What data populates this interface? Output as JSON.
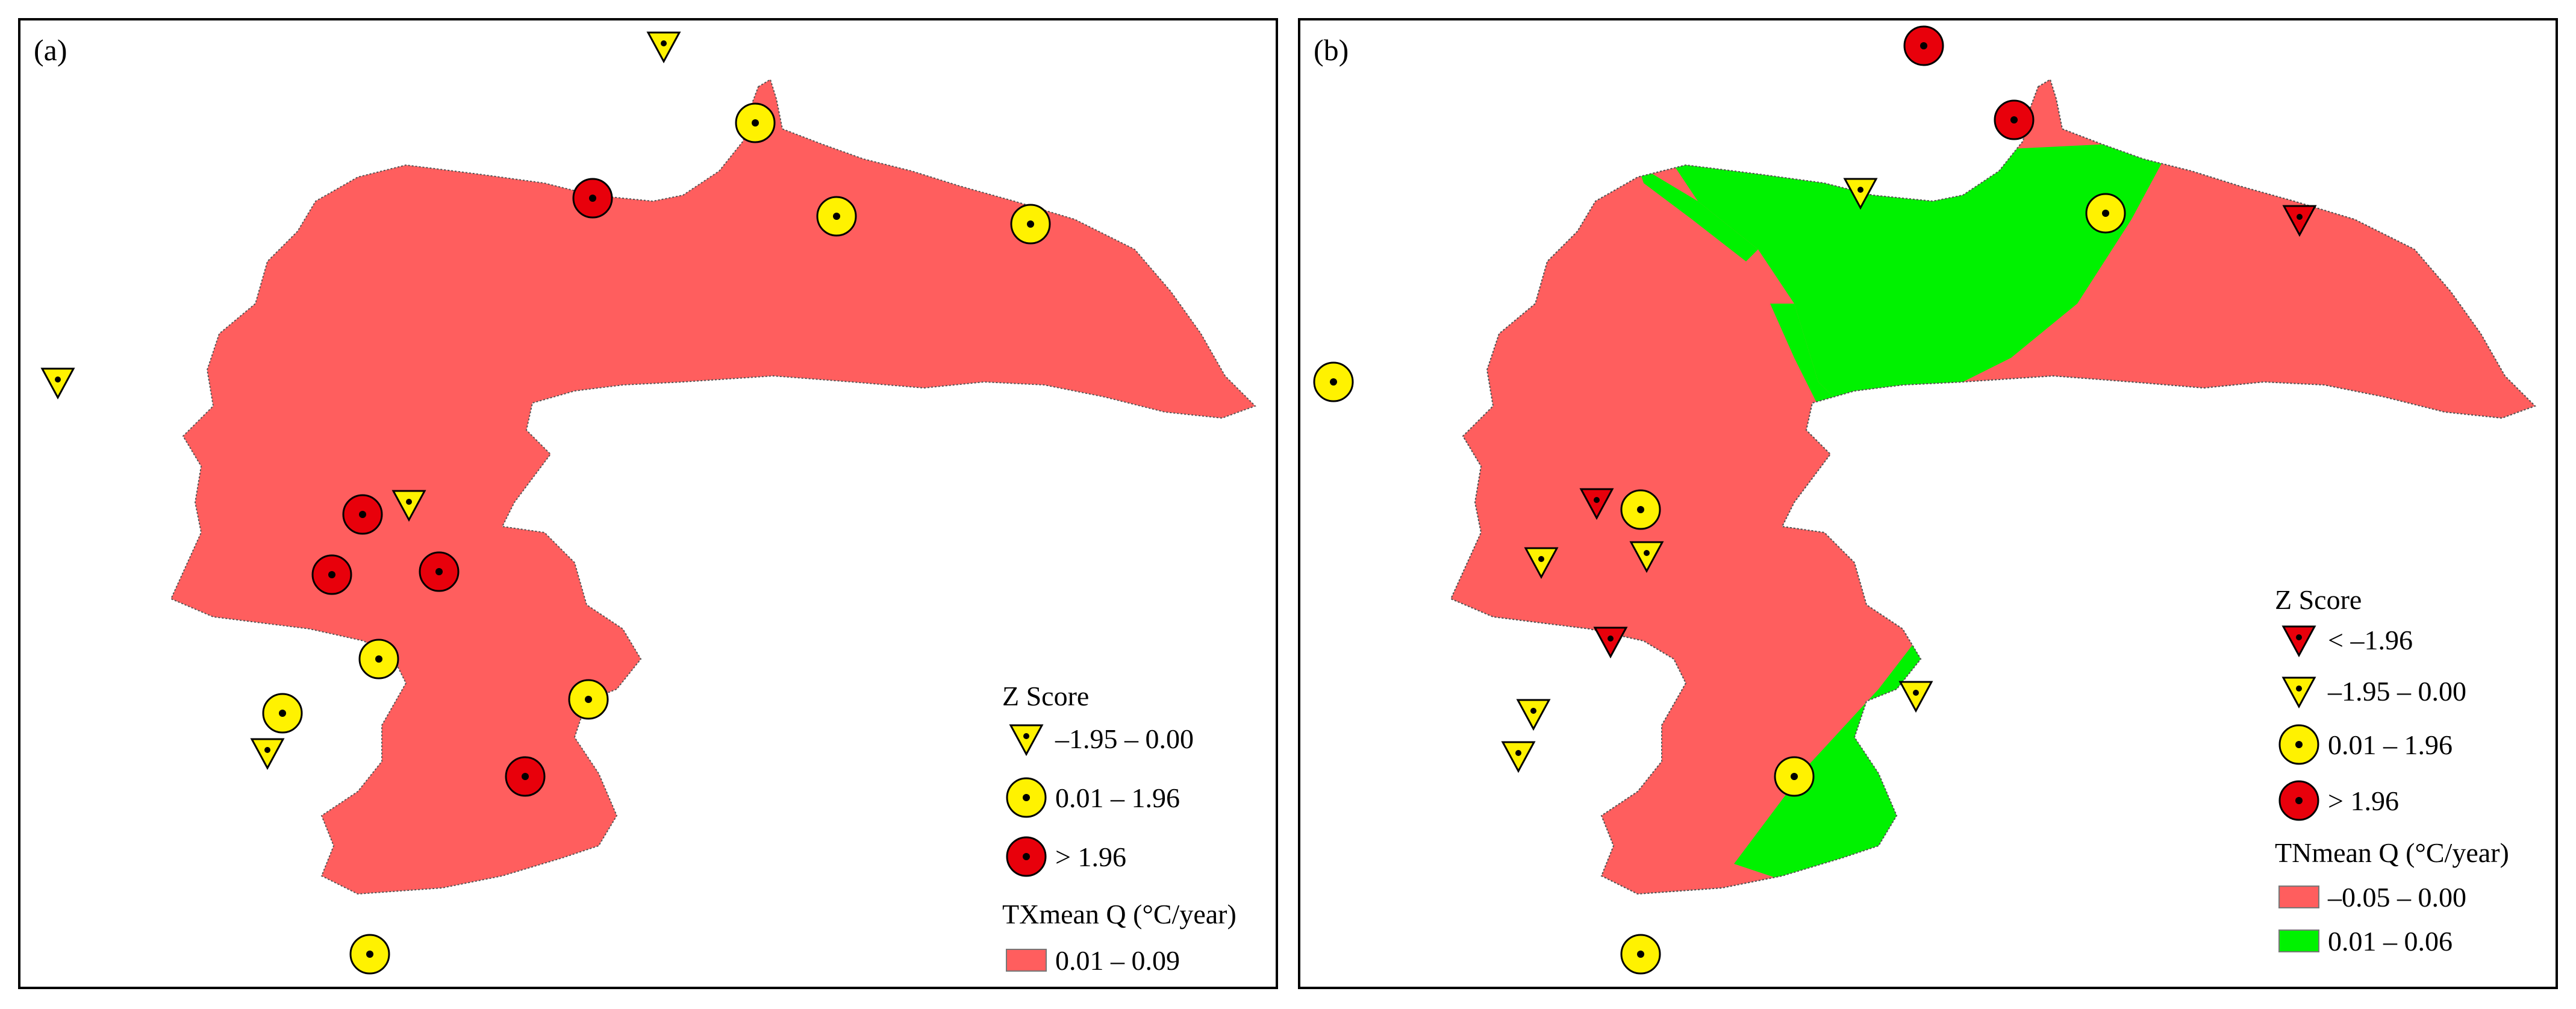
{
  "panels": [
    {
      "label": "(a)",
      "legend": {
        "z_title": "Z Score",
        "z_items": [
          {
            "symbol": "yellow-triangle",
            "label": "–1.95 – 0.00"
          },
          {
            "symbol": "yellow-circle",
            "label": "0.01 – 1.96"
          },
          {
            "symbol": "red-circle",
            "label": "> 1.96"
          }
        ],
        "q_title": "TXmean Q (°C/year)",
        "q_items": [
          {
            "color": "#FF5E5E",
            "label": "0.01 – 0.09"
          }
        ]
      }
    },
    {
      "label": "(b)",
      "legend": {
        "z_title": "Z Score",
        "z_items": [
          {
            "symbol": "red-triangle",
            "label": "< –1.96"
          },
          {
            "symbol": "yellow-triangle",
            "label": "–1.95 – 0.00"
          },
          {
            "symbol": "yellow-circle",
            "label": "0.01 – 1.96"
          },
          {
            "symbol": "red-circle",
            "label": "> 1.96"
          }
        ],
        "q_title": "TNmean Q (°C/year)",
        "q_items": [
          {
            "color": "#FF5E5E",
            "label": "–0.05 – 0.00"
          },
          {
            "color": "#00F200",
            "label": "0.01 – 0.06"
          }
        ]
      }
    }
  ],
  "colors": {
    "red_fill": "#FF5E5E",
    "green_fill": "#00F200",
    "symbol_yellow": "#FFF200",
    "symbol_red": "#E8000B"
  }
}
